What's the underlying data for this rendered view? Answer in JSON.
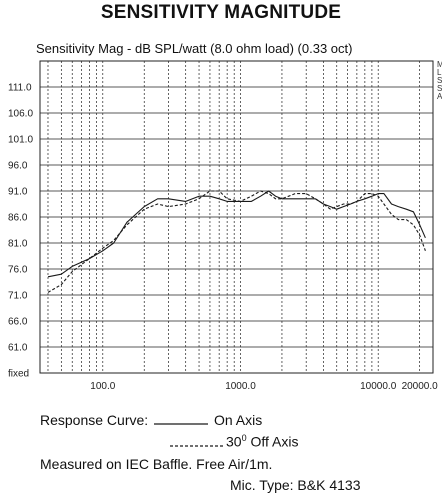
{
  "chart_data": {
    "type": "line",
    "title": "SENSITIVITY MAGNITUDE",
    "subtitle": "Sensitivity Mag - dB SPL/watt  (8.0 ohm load) (0.33 oct)",
    "x_scale": "log",
    "xlim": [
      35,
      25000
    ],
    "ylim": [
      56,
      116
    ],
    "y_ticks": [
      "111.0",
      "106.0",
      "101.0",
      "96.0",
      "91.0",
      "86.0",
      "81.0",
      "76.0",
      "71.0",
      "66.0",
      "61.0",
      "fixed"
    ],
    "y_tick_values": [
      111,
      106,
      101,
      96,
      91,
      86,
      81,
      76,
      71,
      66,
      61,
      56
    ],
    "x_ticks": [
      "100.0",
      "1000.0",
      "10000.0",
      "20000.0"
    ],
    "x_tick_values": [
      100,
      1000,
      10000,
      20000
    ],
    "side_label": "MLSSA",
    "grid": true,
    "series": [
      {
        "name": "On Axis",
        "style": "solid",
        "points": [
          [
            40,
            74.5
          ],
          [
            50,
            75
          ],
          [
            60,
            76.5
          ],
          [
            80,
            78
          ],
          [
            100,
            79.5
          ],
          [
            120,
            81
          ],
          [
            150,
            85
          ],
          [
            200,
            88
          ],
          [
            250,
            89.5
          ],
          [
            300,
            89.5
          ],
          [
            400,
            89
          ],
          [
            500,
            90
          ],
          [
            600,
            90
          ],
          [
            700,
            89.5
          ],
          [
            800,
            89
          ],
          [
            1000,
            89
          ],
          [
            1200,
            89
          ],
          [
            1400,
            90
          ],
          [
            1600,
            91
          ],
          [
            1800,
            90
          ],
          [
            2000,
            89.5
          ],
          [
            2500,
            89.5
          ],
          [
            3000,
            89.5
          ],
          [
            3500,
            89.5
          ],
          [
            4000,
            88.5
          ],
          [
            4500,
            88
          ],
          [
            5000,
            87.5
          ],
          [
            5600,
            88
          ],
          [
            6300,
            88.5
          ],
          [
            7000,
            89
          ],
          [
            8000,
            89.5
          ],
          [
            9000,
            90
          ],
          [
            10000,
            90.5
          ],
          [
            11000,
            90.5
          ],
          [
            12500,
            88.5
          ],
          [
            14000,
            88
          ],
          [
            16000,
            87.5
          ],
          [
            18000,
            87
          ],
          [
            20000,
            84.5
          ],
          [
            22000,
            82
          ]
        ]
      },
      {
        "name": "30° Off Axis",
        "style": "dashed",
        "points": [
          [
            40,
            71.5
          ],
          [
            50,
            73
          ],
          [
            60,
            75.5
          ],
          [
            80,
            78
          ],
          [
            100,
            80
          ],
          [
            120,
            81.5
          ],
          [
            150,
            84.5
          ],
          [
            200,
            87.5
          ],
          [
            250,
            88.5
          ],
          [
            300,
            88
          ],
          [
            400,
            88.5
          ],
          [
            500,
            89.5
          ],
          [
            600,
            91
          ],
          [
            700,
            91
          ],
          [
            800,
            89.5
          ],
          [
            1000,
            89
          ],
          [
            1200,
            90
          ],
          [
            1400,
            91
          ],
          [
            1600,
            90.5
          ],
          [
            1800,
            89.5
          ],
          [
            2000,
            89.5
          ],
          [
            2500,
            90.5
          ],
          [
            3000,
            90.5
          ],
          [
            3500,
            89.5
          ],
          [
            4000,
            88.5
          ],
          [
            4500,
            87.5
          ],
          [
            5000,
            88
          ],
          [
            5600,
            88.5
          ],
          [
            6300,
            88.5
          ],
          [
            7000,
            89
          ],
          [
            8000,
            90.5
          ],
          [
            9000,
            90.5
          ],
          [
            10000,
            90
          ],
          [
            11000,
            88.5
          ],
          [
            12500,
            86.5
          ],
          [
            14000,
            85.5
          ],
          [
            16000,
            85.5
          ],
          [
            18000,
            84.5
          ],
          [
            20000,
            82.5
          ],
          [
            22000,
            79.5
          ]
        ]
      }
    ]
  },
  "legend": {
    "response_curve_label": "Response Curve:",
    "on_axis_label": "On Axis",
    "off_axis_number": "30",
    "off_axis_degree": "0",
    "off_axis_text": " Off Axis",
    "measurement_note": "Measured on IEC Baffle. Free Air/1m.",
    "mic_type": "Mic. Type:  B&K 4133"
  },
  "colors": {
    "line": "#1a1a1a",
    "grid": "#222222",
    "background": "#ffffff"
  }
}
